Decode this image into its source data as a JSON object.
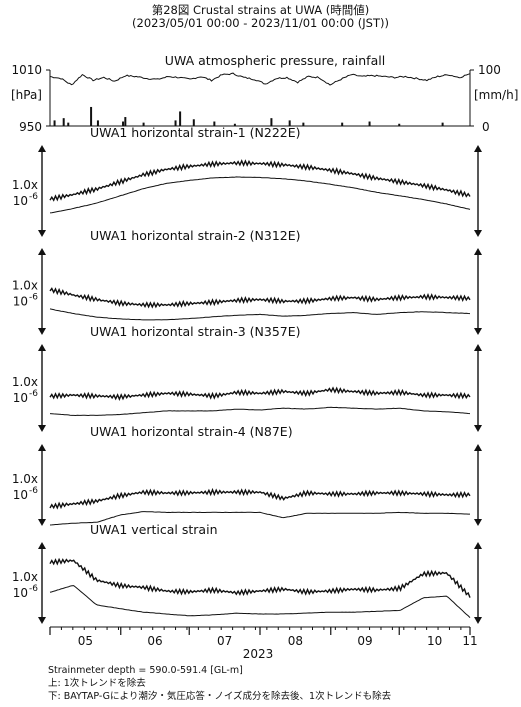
{
  "header": {
    "title_line1": "第28図 Crustal strains at UWA (時間値)",
    "title_line2": "(2023/05/01 00:00 - 2023/11/01 00:00 (JST))"
  },
  "footer": {
    "depth": "Strainmeter depth = 590.0-591.4 [GL-m]",
    "note_upper": "上: 1次トレンドを除去",
    "note_lower": "下: BAYTAP-Gにより潮汐・気圧応答・ノイズ成分を除去後、1次トレンドも除去"
  },
  "colors": {
    "line": "#111111",
    "axis": "#111111",
    "background": "#ffffff"
  },
  "chart_data": {
    "type": "line",
    "x_axis": {
      "tick_labels": [
        "05",
        "06",
        "07",
        "08",
        "09",
        "10",
        "11"
      ],
      "year_label": "2023",
      "range": [
        "2023-05-01",
        "2023-11-01"
      ]
    },
    "panels": [
      {
        "title": "UWA atmospheric pressure, rainfall",
        "type": "pressure_rainfall",
        "left_axis": {
          "ticks": [
            "1010",
            "950"
          ],
          "unit": "[hPa]",
          "ylim": [
            950,
            1010
          ]
        },
        "right_axis": {
          "ticks": [
            "100",
            "0"
          ],
          "unit": "[mm/h]",
          "ylim": [
            0,
            100
          ]
        },
        "pressure_hpa": [
          1003,
          1001,
          994,
          1005,
          999,
          1002,
          998,
          1004,
          1003,
          1001,
          1000,
          1003,
          1002,
          1000,
          1003,
          999,
          1005,
          1006,
          1002,
          1000,
          995,
          1001,
          1002,
          997,
          1003,
          1002,
          994,
          1000,
          1005,
          1003,
          1004,
          1003,
          1002,
          1003,
          1001,
          999,
          1003,
          1005,
          1002,
          1006
        ],
        "rainfall_mm_h": [
          [
            "2023-05-03",
            10
          ],
          [
            "2023-05-07",
            14
          ],
          [
            "2023-05-09",
            6
          ],
          [
            "2023-05-19",
            34
          ],
          [
            "2023-05-22",
            10
          ],
          [
            "2023-06-02",
            8
          ],
          [
            "2023-06-03",
            16
          ],
          [
            "2023-06-11",
            6
          ],
          [
            "2023-06-25",
            10
          ],
          [
            "2023-06-27",
            26
          ],
          [
            "2023-07-03",
            12
          ],
          [
            "2023-07-12",
            8
          ],
          [
            "2023-07-21",
            4
          ],
          [
            "2023-08-06",
            14
          ],
          [
            "2023-08-14",
            10
          ],
          [
            "2023-08-20",
            6
          ],
          [
            "2023-09-06",
            6
          ],
          [
            "2023-09-18",
            8
          ],
          [
            "2023-10-01",
            4
          ],
          [
            "2023-10-20",
            6
          ]
        ]
      },
      {
        "title": "UWA1 horizontal strain-1 (N222E)",
        "scale_label": "1.0x",
        "scale_exp": "10",
        "scale_sup": "-6",
        "upper": [
          0.0,
          0.25,
          0.55,
          0.95,
          1.35,
          1.65,
          1.82,
          1.95,
          2.0,
          1.97,
          1.9,
          1.78,
          1.6,
          1.4,
          1.15,
          0.95,
          0.75,
          0.5,
          0.2
        ],
        "lower": [
          0.0,
          0.25,
          0.55,
          0.95,
          1.35,
          1.65,
          1.82,
          1.95,
          2.0,
          1.97,
          1.9,
          1.78,
          1.6,
          1.4,
          1.15,
          0.95,
          0.75,
          0.5,
          0.2
        ]
      },
      {
        "title": "UWA1 horizontal strain-2 (N312E)",
        "scale_label": "1.0x",
        "scale_exp": "10",
        "scale_sup": "-6",
        "upper": [
          0.55,
          0.25,
          0.0,
          -0.2,
          -0.3,
          -0.3,
          -0.22,
          -0.15,
          -0.05,
          0.0,
          -0.1,
          -0.08,
          0.05,
          0.1,
          0.0,
          0.1,
          0.15,
          0.12,
          0.05
        ],
        "lower": [
          0.25,
          0.0,
          -0.2,
          -0.3,
          -0.35,
          -0.35,
          -0.28,
          -0.18,
          -0.1,
          -0.05,
          -0.15,
          -0.1,
          0.0,
          0.05,
          -0.05,
          0.05,
          0.1,
          0.05,
          0.0
        ]
      },
      {
        "title": "UWA1 horizontal strain-3 (N357E)",
        "scale_label": "1.0x",
        "scale_exp": "10",
        "scale_sup": "-6",
        "upper": [
          0.0,
          0.05,
          0.0,
          -0.05,
          0.05,
          0.15,
          0.1,
          0.0,
          0.2,
          0.15,
          0.25,
          0.15,
          0.35,
          0.25,
          0.15,
          0.2,
          0.05,
          0.05,
          0.0
        ],
        "lower": [
          -0.2,
          -0.3,
          -0.3,
          -0.25,
          -0.15,
          -0.05,
          -0.05,
          -0.05,
          0.05,
          0.0,
          0.1,
          0.05,
          0.15,
          0.1,
          0.05,
          0.1,
          -0.05,
          -0.1,
          -0.2
        ]
      },
      {
        "title": "UWA1 horizontal strain-4 (N87E)",
        "scale_label": "1.0x",
        "scale_exp": "10",
        "scale_sup": "-6",
        "upper": [
          -0.75,
          -0.6,
          -0.45,
          -0.15,
          0.05,
          0.0,
          0.0,
          0.05,
          0.05,
          0.05,
          -0.3,
          0.0,
          -0.05,
          -0.05,
          0.0,
          0.0,
          -0.05,
          -0.1,
          -0.1
        ],
        "lower": [
          -1.0,
          -0.9,
          -0.85,
          -0.45,
          -0.25,
          -0.3,
          -0.3,
          -0.3,
          -0.3,
          -0.3,
          -0.6,
          -0.35,
          -0.35,
          -0.35,
          -0.35,
          -0.3,
          -0.35,
          -0.35,
          -0.4
        ]
      },
      {
        "title": "UWA1 vertical strain",
        "scale_label": "1.0x",
        "scale_exp": "10",
        "scale_sup": "-6",
        "upper": [
          1.6,
          1.7,
          0.6,
          0.3,
          0.2,
          0.0,
          -0.05,
          0.05,
          -0.1,
          0.0,
          0.1,
          -0.05,
          0.0,
          0.1,
          0.05,
          0.15,
          0.95,
          1.0,
          -0.3
        ],
        "lower": [
          0.7,
          1.1,
          0.0,
          -0.2,
          -0.4,
          -0.5,
          -0.6,
          -0.55,
          -0.45,
          -0.5,
          -0.5,
          -0.45,
          -0.4,
          -0.4,
          -0.35,
          -0.3,
          0.4,
          0.5,
          -0.7
        ]
      }
    ]
  }
}
